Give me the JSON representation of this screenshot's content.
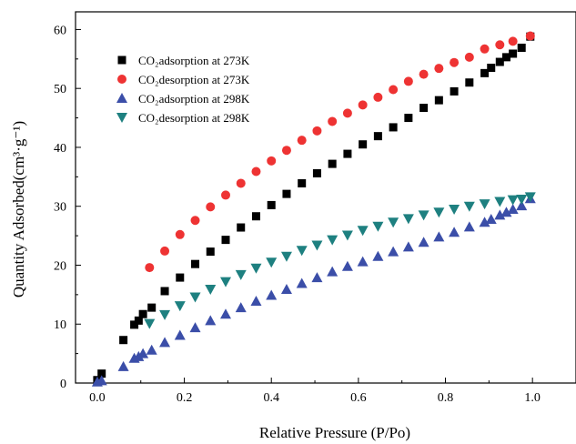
{
  "chart_data": {
    "type": "scatter",
    "xlabel": "Relative Pressure (P/Po)",
    "ylabel": "Quantity Adsorbed(cm³·g⁻¹)",
    "xlim": [
      -0.05,
      1.1
    ],
    "ylim": [
      0,
      63
    ],
    "x_ticks": [
      "0.0",
      "0.2",
      "0.4",
      "0.6",
      "0.8",
      "1.0"
    ],
    "y_ticks": [
      "0",
      "10",
      "20",
      "30",
      "40",
      "50",
      "60"
    ],
    "grid": false,
    "legend_position": "top-left",
    "series": [
      {
        "name": "CO₂adsorption at 273K",
        "marker": "square",
        "color": "#000000",
        "x": [
          0.0,
          0.01,
          0.06,
          0.085,
          0.095,
          0.105,
          0.125,
          0.155,
          0.19,
          0.225,
          0.26,
          0.295,
          0.33,
          0.365,
          0.4,
          0.435,
          0.47,
          0.505,
          0.54,
          0.575,
          0.61,
          0.645,
          0.68,
          0.715,
          0.75,
          0.785,
          0.82,
          0.855,
          0.89,
          0.905,
          0.925,
          0.94,
          0.955,
          0.975,
          0.995
        ],
        "y": [
          0.5,
          1.6,
          7.3,
          9.9,
          10.6,
          11.7,
          12.8,
          15.6,
          17.9,
          20.2,
          22.3,
          24.3,
          26.4,
          28.3,
          30.2,
          32.1,
          33.9,
          35.6,
          37.2,
          38.9,
          40.5,
          41.9,
          43.4,
          45.0,
          46.7,
          48.0,
          49.5,
          51.0,
          52.6,
          53.5,
          54.5,
          55.3,
          55.9,
          56.9,
          58.8
        ]
      },
      {
        "name": "CO₂desorption at 273K",
        "marker": "circle",
        "color": "#ee3333",
        "x": [
          0.12,
          0.155,
          0.19,
          0.225,
          0.26,
          0.295,
          0.33,
          0.365,
          0.4,
          0.435,
          0.47,
          0.505,
          0.54,
          0.575,
          0.61,
          0.645,
          0.68,
          0.715,
          0.75,
          0.785,
          0.82,
          0.855,
          0.89,
          0.925,
          0.955,
          0.995
        ],
        "y": [
          19.6,
          22.4,
          25.2,
          27.6,
          29.9,
          31.9,
          33.9,
          35.9,
          37.7,
          39.5,
          41.2,
          42.8,
          44.4,
          45.8,
          47.2,
          48.5,
          49.8,
          51.2,
          52.4,
          53.4,
          54.4,
          55.3,
          56.7,
          57.4,
          58.0,
          58.9
        ]
      },
      {
        "name": "CO₂adsorption at 298K",
        "marker": "triangle-up",
        "color": "#3b4ea8",
        "x": [
          0.0,
          0.01,
          0.06,
          0.085,
          0.095,
          0.105,
          0.125,
          0.155,
          0.19,
          0.225,
          0.26,
          0.295,
          0.33,
          0.365,
          0.4,
          0.435,
          0.47,
          0.505,
          0.54,
          0.575,
          0.61,
          0.645,
          0.68,
          0.715,
          0.75,
          0.785,
          0.82,
          0.855,
          0.89,
          0.905,
          0.925,
          0.94,
          0.955,
          0.975,
          0.995
        ],
        "y": [
          0.2,
          0.4,
          2.8,
          4.2,
          4.5,
          5.0,
          5.6,
          6.9,
          8.1,
          9.4,
          10.6,
          11.7,
          12.8,
          13.9,
          14.9,
          15.9,
          16.9,
          17.9,
          18.9,
          19.8,
          20.6,
          21.5,
          22.3,
          23.1,
          23.9,
          24.8,
          25.6,
          26.5,
          27.3,
          27.8,
          28.5,
          29.0,
          29.5,
          30.1,
          31.3
        ]
      },
      {
        "name": "CO₂desorption at 298K",
        "marker": "triangle-down",
        "color": "#1e8080",
        "x": [
          0.12,
          0.155,
          0.19,
          0.225,
          0.26,
          0.295,
          0.33,
          0.365,
          0.4,
          0.435,
          0.47,
          0.505,
          0.54,
          0.575,
          0.61,
          0.645,
          0.68,
          0.715,
          0.75,
          0.785,
          0.82,
          0.855,
          0.89,
          0.925,
          0.955,
          0.975,
          0.995
        ],
        "y": [
          10.1,
          11.6,
          13.1,
          14.6,
          15.9,
          17.2,
          18.4,
          19.5,
          20.5,
          21.5,
          22.5,
          23.4,
          24.3,
          25.1,
          25.9,
          26.6,
          27.3,
          27.9,
          28.5,
          29.0,
          29.5,
          30.0,
          30.4,
          30.8,
          31.1,
          31.2,
          31.6
        ]
      }
    ]
  }
}
